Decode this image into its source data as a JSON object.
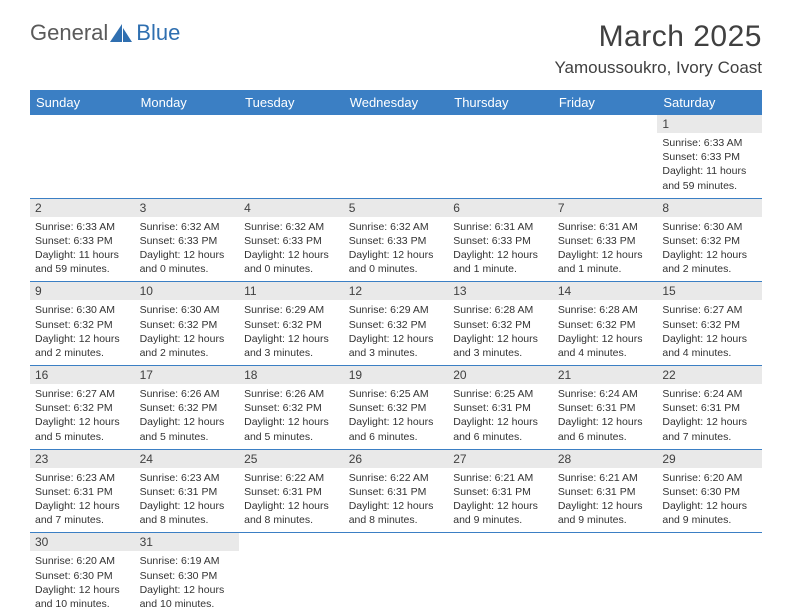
{
  "brand": {
    "text1": "General",
    "text2": "Blue",
    "color1": "#5a5a5a",
    "color2": "#2f6fb0",
    "icon_color": "#2f6fb0"
  },
  "title": "March 2025",
  "location": "Yamoussoukro, Ivory Coast",
  "header_bg": "#3b7fc4",
  "header_fg": "#ffffff",
  "daynum_bg": "#e9e9e9",
  "divider_color": "#3b7fc4",
  "font_family": "Arial",
  "title_fontsize": 30,
  "location_fontsize": 17,
  "header_fontsize": 13,
  "cell_fontsize": 10.5,
  "columns": [
    "Sunday",
    "Monday",
    "Tuesday",
    "Wednesday",
    "Thursday",
    "Friday",
    "Saturday"
  ],
  "weeks": [
    [
      null,
      null,
      null,
      null,
      null,
      null,
      {
        "d": "1",
        "sr": "Sunrise: 6:33 AM",
        "ss": "Sunset: 6:33 PM",
        "dl": "Daylight: 11 hours and 59 minutes."
      }
    ],
    [
      {
        "d": "2",
        "sr": "Sunrise: 6:33 AM",
        "ss": "Sunset: 6:33 PM",
        "dl": "Daylight: 11 hours and 59 minutes."
      },
      {
        "d": "3",
        "sr": "Sunrise: 6:32 AM",
        "ss": "Sunset: 6:33 PM",
        "dl": "Daylight: 12 hours and 0 minutes."
      },
      {
        "d": "4",
        "sr": "Sunrise: 6:32 AM",
        "ss": "Sunset: 6:33 PM",
        "dl": "Daylight: 12 hours and 0 minutes."
      },
      {
        "d": "5",
        "sr": "Sunrise: 6:32 AM",
        "ss": "Sunset: 6:33 PM",
        "dl": "Daylight: 12 hours and 0 minutes."
      },
      {
        "d": "6",
        "sr": "Sunrise: 6:31 AM",
        "ss": "Sunset: 6:33 PM",
        "dl": "Daylight: 12 hours and 1 minute."
      },
      {
        "d": "7",
        "sr": "Sunrise: 6:31 AM",
        "ss": "Sunset: 6:33 PM",
        "dl": "Daylight: 12 hours and 1 minute."
      },
      {
        "d": "8",
        "sr": "Sunrise: 6:30 AM",
        "ss": "Sunset: 6:32 PM",
        "dl": "Daylight: 12 hours and 2 minutes."
      }
    ],
    [
      {
        "d": "9",
        "sr": "Sunrise: 6:30 AM",
        "ss": "Sunset: 6:32 PM",
        "dl": "Daylight: 12 hours and 2 minutes."
      },
      {
        "d": "10",
        "sr": "Sunrise: 6:30 AM",
        "ss": "Sunset: 6:32 PM",
        "dl": "Daylight: 12 hours and 2 minutes."
      },
      {
        "d": "11",
        "sr": "Sunrise: 6:29 AM",
        "ss": "Sunset: 6:32 PM",
        "dl": "Daylight: 12 hours and 3 minutes."
      },
      {
        "d": "12",
        "sr": "Sunrise: 6:29 AM",
        "ss": "Sunset: 6:32 PM",
        "dl": "Daylight: 12 hours and 3 minutes."
      },
      {
        "d": "13",
        "sr": "Sunrise: 6:28 AM",
        "ss": "Sunset: 6:32 PM",
        "dl": "Daylight: 12 hours and 3 minutes."
      },
      {
        "d": "14",
        "sr": "Sunrise: 6:28 AM",
        "ss": "Sunset: 6:32 PM",
        "dl": "Daylight: 12 hours and 4 minutes."
      },
      {
        "d": "15",
        "sr": "Sunrise: 6:27 AM",
        "ss": "Sunset: 6:32 PM",
        "dl": "Daylight: 12 hours and 4 minutes."
      }
    ],
    [
      {
        "d": "16",
        "sr": "Sunrise: 6:27 AM",
        "ss": "Sunset: 6:32 PM",
        "dl": "Daylight: 12 hours and 5 minutes."
      },
      {
        "d": "17",
        "sr": "Sunrise: 6:26 AM",
        "ss": "Sunset: 6:32 PM",
        "dl": "Daylight: 12 hours and 5 minutes."
      },
      {
        "d": "18",
        "sr": "Sunrise: 6:26 AM",
        "ss": "Sunset: 6:32 PM",
        "dl": "Daylight: 12 hours and 5 minutes."
      },
      {
        "d": "19",
        "sr": "Sunrise: 6:25 AM",
        "ss": "Sunset: 6:32 PM",
        "dl": "Daylight: 12 hours and 6 minutes."
      },
      {
        "d": "20",
        "sr": "Sunrise: 6:25 AM",
        "ss": "Sunset: 6:31 PM",
        "dl": "Daylight: 12 hours and 6 minutes."
      },
      {
        "d": "21",
        "sr": "Sunrise: 6:24 AM",
        "ss": "Sunset: 6:31 PM",
        "dl": "Daylight: 12 hours and 6 minutes."
      },
      {
        "d": "22",
        "sr": "Sunrise: 6:24 AM",
        "ss": "Sunset: 6:31 PM",
        "dl": "Daylight: 12 hours and 7 minutes."
      }
    ],
    [
      {
        "d": "23",
        "sr": "Sunrise: 6:23 AM",
        "ss": "Sunset: 6:31 PM",
        "dl": "Daylight: 12 hours and 7 minutes."
      },
      {
        "d": "24",
        "sr": "Sunrise: 6:23 AM",
        "ss": "Sunset: 6:31 PM",
        "dl": "Daylight: 12 hours and 8 minutes."
      },
      {
        "d": "25",
        "sr": "Sunrise: 6:22 AM",
        "ss": "Sunset: 6:31 PM",
        "dl": "Daylight: 12 hours and 8 minutes."
      },
      {
        "d": "26",
        "sr": "Sunrise: 6:22 AM",
        "ss": "Sunset: 6:31 PM",
        "dl": "Daylight: 12 hours and 8 minutes."
      },
      {
        "d": "27",
        "sr": "Sunrise: 6:21 AM",
        "ss": "Sunset: 6:31 PM",
        "dl": "Daylight: 12 hours and 9 minutes."
      },
      {
        "d": "28",
        "sr": "Sunrise: 6:21 AM",
        "ss": "Sunset: 6:31 PM",
        "dl": "Daylight: 12 hours and 9 minutes."
      },
      {
        "d": "29",
        "sr": "Sunrise: 6:20 AM",
        "ss": "Sunset: 6:30 PM",
        "dl": "Daylight: 12 hours and 9 minutes."
      }
    ],
    [
      {
        "d": "30",
        "sr": "Sunrise: 6:20 AM",
        "ss": "Sunset: 6:30 PM",
        "dl": "Daylight: 12 hours and 10 minutes."
      },
      {
        "d": "31",
        "sr": "Sunrise: 6:19 AM",
        "ss": "Sunset: 6:30 PM",
        "dl": "Daylight: 12 hours and 10 minutes."
      },
      null,
      null,
      null,
      null,
      null
    ]
  ]
}
